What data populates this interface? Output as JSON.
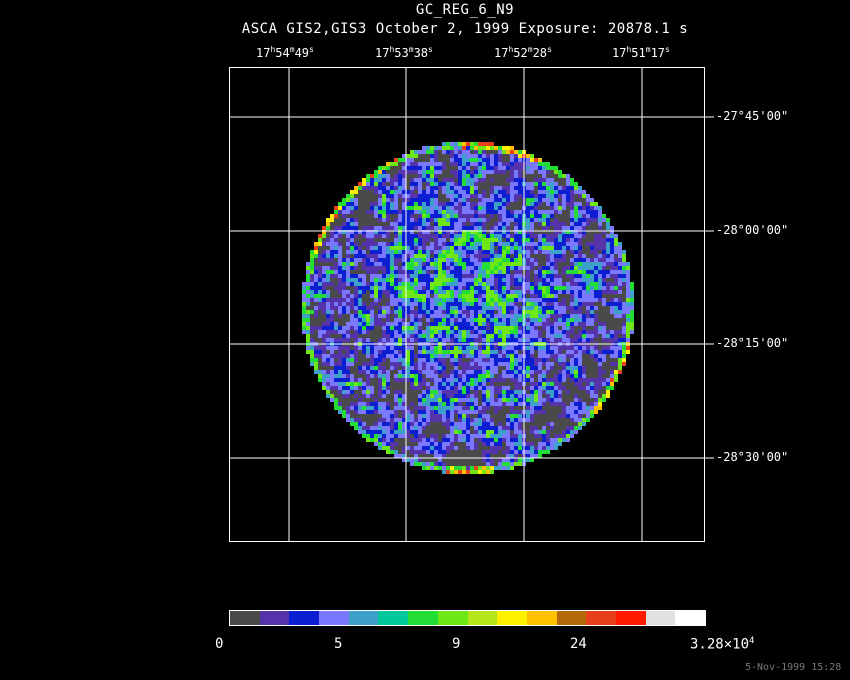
{
  "header": {
    "title": "GC_REG_6_N9",
    "subtitle": "ASCA GIS2,GIS3 October 2, 1999 Exposure: 20878.1 s"
  },
  "axes": {
    "ra_labels": [
      {
        "h": "17",
        "m": "54",
        "s": "49"
      },
      {
        "h": "17",
        "m": "53",
        "s": "38"
      },
      {
        "h": "17",
        "m": "52",
        "s": "28"
      },
      {
        "h": "17",
        "m": "51",
        "s": "17"
      }
    ],
    "dec_labels": [
      "-27°45'00\"",
      "-28°00'00\"",
      "-28°15'00\"",
      "-28°30'00\""
    ]
  },
  "colorbar": {
    "colors": [
      "#4a4a4a",
      "#5533aa",
      "#0b1ed2",
      "#7a78ff",
      "#3ca0c8",
      "#00c89a",
      "#22dd33",
      "#6ee815",
      "#b4e61a",
      "#fff000",
      "#ffc000",
      "#b46a08",
      "#e8401a",
      "#ff1a00",
      "#e0e0e0",
      "#ffffff"
    ],
    "labels": [
      "0",
      "5",
      "9",
      "24",
      "3.28×10"
    ],
    "exponent": "4"
  },
  "timestamp": "5-Nov-1999 15:28"
}
